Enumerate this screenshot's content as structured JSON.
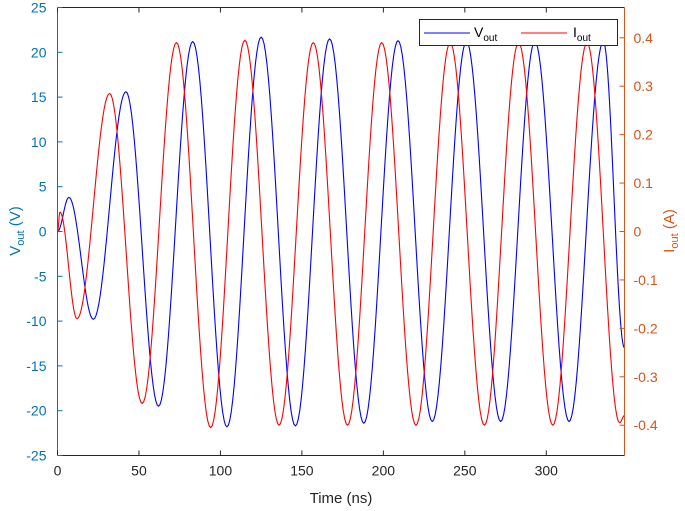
{
  "chart_data": {
    "type": "line",
    "title": "",
    "xlabel": "Time (ns)",
    "ylabel_left": {
      "main": "V",
      "sub": "out",
      "unit": " (V)"
    },
    "ylabel_right": {
      "main": "I",
      "sub": "out",
      "unit": " (A)"
    },
    "xlim": [
      0,
      348
    ],
    "ylim_left": [
      -25,
      25
    ],
    "ylim_right": [
      -0.4625,
      0.4625
    ],
    "x_ticks": [
      "0",
      "50",
      "100",
      "150",
      "200",
      "250",
      "300"
    ],
    "x_tick_values": [
      0,
      50,
      100,
      150,
      200,
      250,
      300
    ],
    "y_left_ticks": [
      "25",
      "20",
      "15",
      "10",
      "5",
      "0",
      "-5",
      "-10",
      "-15",
      "-20",
      "-25"
    ],
    "y_left_tick_values": [
      25,
      20,
      15,
      10,
      5,
      0,
      -5,
      -10,
      -15,
      -20,
      -25
    ],
    "y_right_ticks": [
      "0.4",
      "0.3",
      "0.2",
      "0.1",
      "0",
      "-0.1",
      "-0.2",
      "-0.3",
      "-0.4"
    ],
    "y_right_tick_values": [
      0.4,
      0.3,
      0.2,
      0.1,
      0,
      -0.1,
      -0.2,
      -0.3,
      -0.4
    ],
    "grid": false,
    "legend_position": "top-right",
    "colors": {
      "left_axis": "#0072BD",
      "right_axis": "#D95319",
      "vout": "#0000FF",
      "iout": "#FF0000",
      "frame": "#262626"
    },
    "series": [
      {
        "name": "V_out",
        "legend_main": "V",
        "legend_sub": "out",
        "axis": "left",
        "color": "#0000FF",
        "extrema_t": [
          0,
          7,
          22,
          42,
          62,
          83,
          104,
          125,
          146,
          167,
          188,
          209,
          230,
          251,
          272,
          293,
          314,
          335,
          348
        ],
        "extrema_v": [
          0,
          3.8,
          -9.8,
          15.6,
          -19.5,
          21.2,
          -21.8,
          21.7,
          -21.7,
          21.5,
          -21.4,
          21.3,
          -21.2,
          21.2,
          -21.2,
          21.2,
          -21.2,
          21.2,
          -13
        ]
      },
      {
        "name": "I_out",
        "legend_main": "I",
        "legend_sub": "out",
        "axis": "right",
        "color": "#FF0000",
        "extrema_t": [
          0,
          1.5,
          12,
          32,
          52,
          73,
          94,
          115,
          136,
          157,
          178,
          199,
          220,
          241,
          262,
          283,
          304,
          325,
          345,
          348
        ],
        "extrema_v": [
          0,
          0.04,
          -0.18,
          0.285,
          -0.355,
          0.39,
          -0.405,
          0.395,
          -0.4,
          0.39,
          -0.4,
          0.39,
          -0.4,
          0.39,
          -0.4,
          0.39,
          -0.4,
          0.39,
          -0.395,
          -0.38
        ]
      }
    ]
  }
}
